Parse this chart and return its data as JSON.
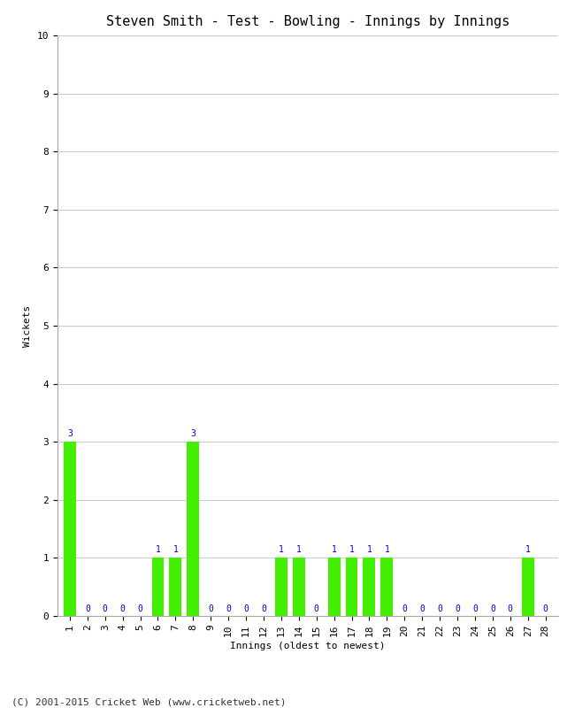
{
  "title": "Steven Smith - Test - Bowling - Innings by Innings",
  "xlabel": "Innings (oldest to newest)",
  "ylabel": "Wickets",
  "footnote": "(C) 2001-2015 Cricket Web (www.cricketweb.net)",
  "x_labels": [
    "1",
    "2",
    "3",
    "4",
    "5",
    "6",
    "7",
    "8",
    "9",
    "10",
    "11",
    "12",
    "13",
    "14",
    "15",
    "16",
    "17",
    "18",
    "19",
    "20",
    "21",
    "22",
    "23",
    "24",
    "25",
    "26",
    "27",
    "28"
  ],
  "values": [
    3,
    0,
    0,
    0,
    0,
    1,
    1,
    3,
    0,
    0,
    0,
    0,
    1,
    1,
    0,
    1,
    1,
    1,
    1,
    0,
    0,
    0,
    0,
    0,
    0,
    0,
    1,
    0
  ],
  "bar_color": "#44ee00",
  "label_color_nonzero": "#0000cc",
  "label_color_zero": "#0000cc",
  "ylim": [
    0,
    10
  ],
  "yticks": [
    0,
    1,
    2,
    3,
    4,
    5,
    6,
    7,
    8,
    9,
    10
  ],
  "background_color": "#ffffff",
  "grid_color": "#cccccc",
  "title_fontsize": 11,
  "axis_fontsize": 8,
  "label_fontsize": 7,
  "footnote_fontsize": 8
}
